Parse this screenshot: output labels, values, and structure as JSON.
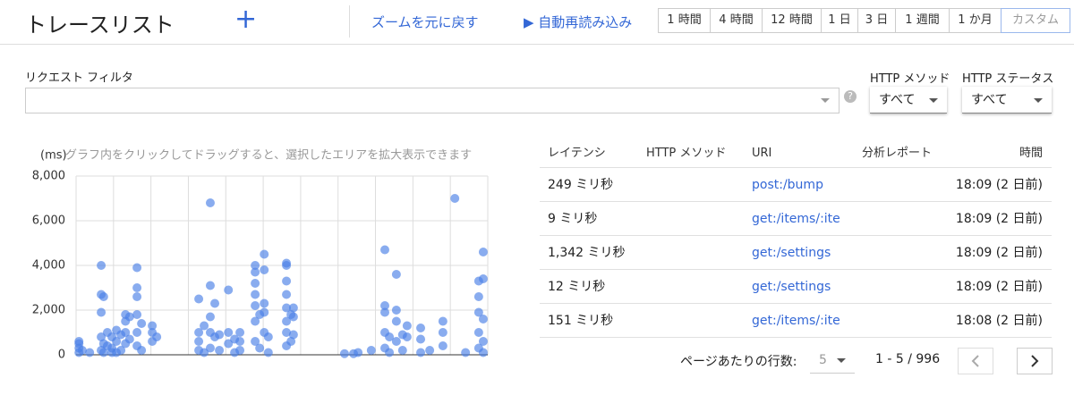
{
  "header": {
    "title": "トレースリスト",
    "add": "+",
    "zoom_reset": "ズームを元に戻す",
    "auto_reload": "▶ 自動再読み込み",
    "ranges": [
      "1 時間",
      "4 時間",
      "12 時間",
      "1 日",
      "3 日",
      "1 週間",
      "1 か月",
      "カスタム"
    ]
  },
  "filter": {
    "label": "リクエスト フィルタ",
    "help": "?",
    "method_label": "HTTP メソッド",
    "method_value": "すべて",
    "status_label": "HTTP ステータス",
    "status_value": "すべて"
  },
  "chart_data": {
    "type": "scatter",
    "y_label": "(ms)",
    "hint": "グラフ内をクリックしてドラッグすると、選択したエリアを拡大表示できます",
    "color": "#4a7fe6",
    "grid": true,
    "xlim": [
      0,
      100
    ],
    "ylim": [
      0,
      8000
    ],
    "yticks": [
      0,
      {
        "value": 2000,
        "label": "2,000"
      },
      {
        "value": 4000,
        "label": "4,000"
      },
      {
        "value": 6000,
        "label": "6,000"
      },
      {
        "value": 8000,
        "label": "8,000"
      }
    ],
    "x": [
      0.7,
      0.7,
      0.7,
      0.7,
      1.5,
      3.3,
      6.1,
      6.1,
      6.1,
      6.1,
      6.1,
      6.7,
      6.7,
      6.7,
      7.6,
      7.6,
      8.7,
      8.7,
      8.7,
      9.8,
      9.8,
      9.8,
      10.9,
      10.9,
      12,
      12,
      12,
      12,
      13,
      13,
      14.8,
      14.8,
      14.8,
      14.8,
      14.8,
      14.8,
      15.9,
      15.9,
      18.5,
      18.5,
      18.5,
      19.6,
      29.8,
      29.8,
      29.8,
      29.8,
      31.1,
      31.1,
      32.6,
      32.6,
      32.6,
      32.6,
      32.6,
      33.7,
      33.7,
      34.8,
      34.8,
      37,
      37,
      37,
      38.5,
      38.5,
      39.8,
      39.8,
      39.8,
      43.5,
      43.5,
      43.5,
      43.5,
      43.5,
      43.5,
      43.5,
      44.6,
      44.6,
      45.7,
      45.7,
      45.7,
      45.7,
      45.7,
      46.7,
      46.7,
      51.1,
      51.1,
      51.1,
      51.1,
      51.1,
      51.1,
      51.1,
      51.1,
      52.2,
      52.2,
      52.8,
      52.8,
      52.8,
      65.2,
      67.4,
      68.5,
      71.7,
      75,
      75,
      75,
      75,
      75,
      76.1,
      76.1,
      77.8,
      77.8,
      77.8,
      77.8,
      79.3,
      79.3,
      80.4,
      80.4,
      83.7,
      83.7,
      83.7,
      85.9,
      89.1,
      89.1,
      89.1,
      92,
      94.6,
      97.8,
      97.8,
      97.8,
      97.8,
      97.8,
      98.9,
      98.9,
      98.9,
      98.9,
      98.9
    ],
    "y": [
      100,
      300,
      500,
      600,
      200,
      100,
      4000,
      2700,
      1900,
      800,
      200,
      2600,
      500,
      100,
      1000,
      400,
      800,
      300,
      100,
      1100,
      600,
      100,
      900,
      200,
      1800,
      1500,
      1000,
      500,
      1700,
      700,
      3900,
      3000,
      2600,
      1800,
      1000,
      400,
      1400,
      200,
      1300,
      1000,
      600,
      800,
      2500,
      1000,
      600,
      200,
      1300,
      100,
      6800,
      3100,
      1700,
      1000,
      300,
      2300,
      800,
      900,
      200,
      2900,
      1000,
      500,
      700,
      100,
      1000,
      600,
      200,
      4000,
      3700,
      3200,
      2700,
      2200,
      1500,
      600,
      1800,
      300,
      4500,
      3800,
      2300,
      1900,
      1000,
      800,
      100,
      4100,
      4000,
      3300,
      2700,
      2100,
      1500,
      1000,
      400,
      1800,
      600,
      2100,
      1700,
      900,
      50,
      50,
      100,
      200,
      4700,
      2200,
      1900,
      1000,
      300,
      800,
      100,
      3600,
      2000,
      1500,
      600,
      900,
      200,
      1300,
      800,
      1200,
      700,
      100,
      200,
      1500,
      1000,
      400,
      7000,
      100,
      3300,
      2600,
      1900,
      1000,
      300,
      4600,
      3400,
      1600,
      600,
      100
    ]
  },
  "table": {
    "columns": [
      "レイテンシ",
      "HTTP メソッド",
      "URI",
      "分析レポート",
      "時間"
    ],
    "rows": [
      {
        "latency": "249 ミリ秒",
        "uri": "post:/bump",
        "time": "18:09 (2 日前)"
      },
      {
        "latency": "9 ミリ秒",
        "uri": "get:/items/:ite",
        "time": "18:09 (2 日前)"
      },
      {
        "latency": "1,342 ミリ秒",
        "uri": "get:/settings",
        "time": "18:09 (2 日前)"
      },
      {
        "latency": "12 ミリ秒",
        "uri": "get:/settings",
        "time": "18:09 (2 日前)"
      },
      {
        "latency": "151 ミリ秒",
        "uri": "get:/items/:ite",
        "time": "18:08 (2 日前)"
      }
    ]
  },
  "pagination": {
    "rows_label": "ページあたりの行数:",
    "rows_value": "5",
    "range": "1 - 5 / 996"
  }
}
